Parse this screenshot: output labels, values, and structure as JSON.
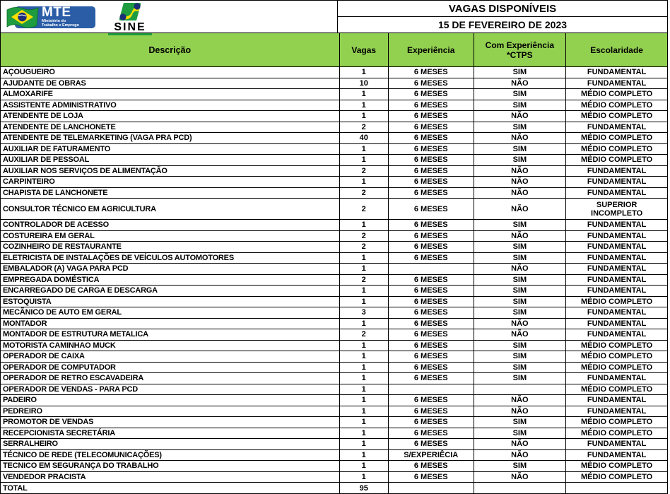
{
  "page": {
    "title": "VAGAS DISPONÍVEIS",
    "date": "15 DE FEVEREIRO DE 2023"
  },
  "logos": {
    "mte": {
      "title": "MTE",
      "subtitle": "Ministério do\nTrabalho e Emprego"
    },
    "sine": {
      "title": "SINE"
    }
  },
  "colors": {
    "header_green": "#92D050",
    "mte_blue": "#2B5DA7",
    "flag_green": "#1E9C3F",
    "flag_yellow": "#FFDF00",
    "flag_blue": "#1B2E77"
  },
  "table": {
    "columns": [
      "Descrição",
      "Vagas",
      "Experiência",
      "Com Experiência\n*CTPS",
      "Escolaridade"
    ],
    "rows": [
      {
        "desc": "AÇOUGUEIRO",
        "vagas": "1",
        "exp": "6 MESES",
        "ctps": "SIM",
        "esc": "FUNDAMENTAL"
      },
      {
        "desc": "AJUDANTE DE OBRAS",
        "vagas": "10",
        "exp": "6 MESES",
        "ctps": "NÃO",
        "esc": "FUNDAMENTAL"
      },
      {
        "desc": "ALMOXARIFE",
        "vagas": "1",
        "exp": "6 MESES",
        "ctps": "SIM",
        "esc": "MÉDIO COMPLETO"
      },
      {
        "desc": "ASSISTENTE ADMINISTRATIVO",
        "vagas": "1",
        "exp": "6 MESES",
        "ctps": "SIM",
        "esc": "MÉDIO COMPLETO"
      },
      {
        "desc": "ATENDENTE DE LOJA",
        "vagas": "1",
        "exp": "6 MESES",
        "ctps": "NÃO",
        "esc": "MÉDIO COMPLETO"
      },
      {
        "desc": "ATENDENTE DE LANCHONETE",
        "vagas": "2",
        "exp": "6 MESES",
        "ctps": "SIM",
        "esc": "FUNDAMENTAL"
      },
      {
        "desc": "ATENDENTE DE TELEMARKETING (VAGA PRA PCD)",
        "vagas": "40",
        "exp": "6 MESES",
        "ctps": "NÃO",
        "esc": "MÉDIO COMPLETO"
      },
      {
        "desc": "AUXILIAR DE FATURAMENTO",
        "vagas": "1",
        "exp": "6 MESES",
        "ctps": "SIM",
        "esc": "MÉDIO COMPLETO"
      },
      {
        "desc": "AUXILIAR DE PESSOAL",
        "vagas": "1",
        "exp": "6 MESES",
        "ctps": "SIM",
        "esc": "MÉDIO COMPLETO"
      },
      {
        "desc": "AUXILIAR NOS SERVIÇOS DE ALIMENTAÇÃO",
        "vagas": "2",
        "exp": "6 MESES",
        "ctps": "NÃO",
        "esc": "FUNDAMENTAL"
      },
      {
        "desc": "CARPINTEIRO",
        "vagas": "1",
        "exp": "6 MESES",
        "ctps": "NÃO",
        "esc": "FUNDAMENTAL"
      },
      {
        "desc": "CHAPISTA DE LANCHONETE",
        "vagas": "2",
        "exp": "6 MESES",
        "ctps": "NÃO",
        "esc": "FUNDAMENTAL"
      },
      {
        "desc": "CONSULTOR TÉCNICO EM AGRICULTURA",
        "vagas": "2",
        "exp": "6 MESES",
        "ctps": "NÃO",
        "esc": "SUPERIOR INCOMPLETO",
        "tall": true
      },
      {
        "desc": "CONTROLADOR DE ACESSO",
        "vagas": "1",
        "exp": "6 MESES",
        "ctps": "SIM",
        "esc": "FUNDAMENTAL"
      },
      {
        "desc": "COSTUREIRA EM GERAL",
        "vagas": "2",
        "exp": "6 MESES",
        "ctps": "NÃO",
        "esc": "FUNDAMENTAL"
      },
      {
        "desc": "COZINHEIRO DE RESTAURANTE",
        "vagas": "2",
        "exp": "6 MESES",
        "ctps": "SIM",
        "esc": "FUNDAMENTAL"
      },
      {
        "desc": "ELETRICISTA DE INSTALAÇÕES DE VEÍCULOS AUTOMOTORES",
        "vagas": "1",
        "exp": "6 MESES",
        "ctps": "SIM",
        "esc": "FUNDAMENTAL"
      },
      {
        "desc": "EMBALADOR (A)  VAGA PARA PCD",
        "vagas": "1",
        "exp": "",
        "ctps": "NÃO",
        "esc": "FUNDAMENTAL"
      },
      {
        "desc": "EMPREGADA DOMÉSTICA",
        "vagas": "2",
        "exp": "6 MESES",
        "ctps": "SIM",
        "esc": "FUNDAMENTAL"
      },
      {
        "desc": "ENCARREGADO DE CARGA E DESCARGA",
        "vagas": "1",
        "exp": "6 MESES",
        "ctps": "SIM",
        "esc": "FUNDAMENTAL"
      },
      {
        "desc": "ESTOQUISTA",
        "vagas": "1",
        "exp": "6 MESES",
        "ctps": "SIM",
        "esc": "MÉDIO COMPLETO"
      },
      {
        "desc": "MECÃNICO DE AUTO EM GERAL",
        "vagas": "3",
        "exp": "6 MESES",
        "ctps": "SIM",
        "esc": "FUNDAMENTAL"
      },
      {
        "desc": "MONTADOR",
        "vagas": "1",
        "exp": "6 MESES",
        "ctps": "NÃO",
        "esc": "FUNDAMENTAL"
      },
      {
        "desc": "MONTADOR DE ESTRUTURA METALICA",
        "vagas": "2",
        "exp": "6 MESES",
        "ctps": "NÃO",
        "esc": "FUNDAMENTAL"
      },
      {
        "desc": "MOTORISTA CAMINHAO MUCK",
        "vagas": "1",
        "exp": "6 MESES",
        "ctps": "SIM",
        "esc": "MÉDIO COMPLETO"
      },
      {
        "desc": "OPERADOR DE CAIXA",
        "vagas": "1",
        "exp": "6 MESES",
        "ctps": "SIM",
        "esc": "MÉDIO COMPLETO"
      },
      {
        "desc": "OPERADOR DE COMPUTADOR",
        "vagas": "1",
        "exp": "6 MESES",
        "ctps": "SIM",
        "esc": "MÉDIO COMPLETO"
      },
      {
        "desc": "OPERADOR DE RETRO ESCAVADEIRA",
        "vagas": "1",
        "exp": "6 MESES",
        "ctps": "SIM",
        "esc": "FUNDAMENTAL"
      },
      {
        "desc": "OPERADOR DE VENDAS - PARA PCD",
        "vagas": "1",
        "exp": "",
        "ctps": "",
        "esc": "MÉDIO COMPLETO"
      },
      {
        "desc": "PADEIRO",
        "vagas": "1",
        "exp": "6 MESES",
        "ctps": "NÃO",
        "esc": "FUNDAMENTAL"
      },
      {
        "desc": "PEDREIRO",
        "vagas": "1",
        "exp": "6 MESES",
        "ctps": "NÃO",
        "esc": "FUNDAMENTAL"
      },
      {
        "desc": "PROMOTOR DE VENDAS",
        "vagas": "1",
        "exp": "6 MESES",
        "ctps": "SIM",
        "esc": "MÉDIO COMPLETO"
      },
      {
        "desc": "RECEPCIONISTA SECRETÁRIA",
        "vagas": "1",
        "exp": "6 MESES",
        "ctps": "SIM",
        "esc": "MÉDIO COMPLETO"
      },
      {
        "desc": "SERRALHEIRO",
        "vagas": "1",
        "exp": "6 MESES",
        "ctps": "NÃO",
        "esc": "FUNDAMENTAL"
      },
      {
        "desc": "TÉCNICO DE REDE (TELECOMUNICAÇÕES)",
        "vagas": "1",
        "exp": "S/EXPERIÊCIA",
        "ctps": "NÃO",
        "esc": "FUNDAMENTAL"
      },
      {
        "desc": "TECNICO EM SEGURANÇA DO TRABALHO",
        "vagas": "1",
        "exp": "6 MESES",
        "ctps": "SIM",
        "esc": "MÉDIO COMPLETO"
      },
      {
        "desc": "VENDEDOR PRACISTA",
        "vagas": "1",
        "exp": "6 MESES",
        "ctps": "NÃO",
        "esc": "MÉDIO COMPLETO"
      }
    ],
    "total": {
      "label": "TOTAL",
      "vagas": "95",
      "exp": "",
      "ctps": "",
      "esc": ""
    }
  }
}
